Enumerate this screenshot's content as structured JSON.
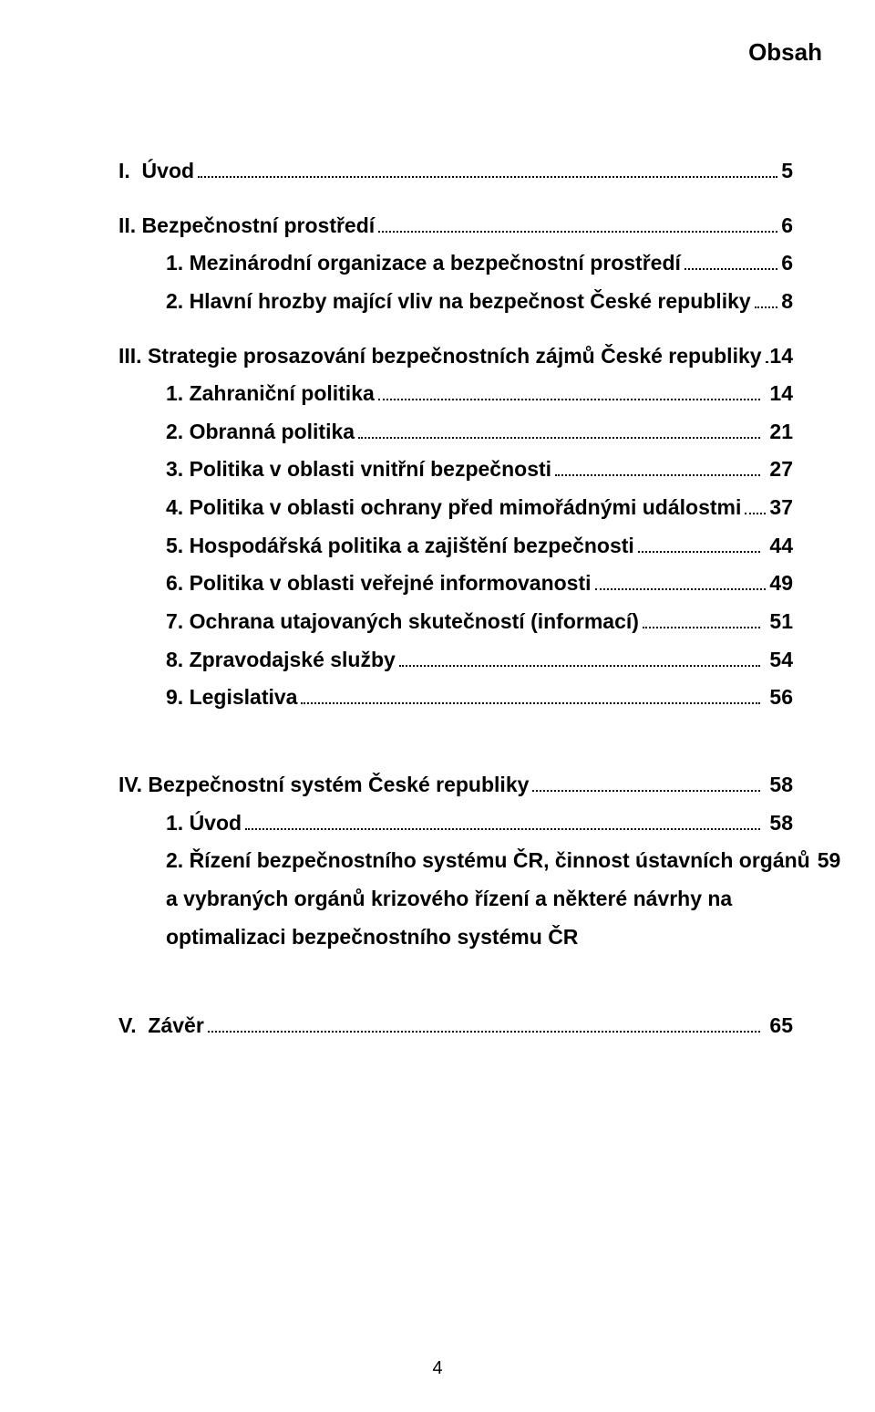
{
  "header": "Obsah",
  "toc": {
    "i": {
      "label": "I.  Úvod",
      "page": "5"
    },
    "ii": {
      "label": "II. Bezpečnostní prostředí",
      "page": "6"
    },
    "ii1": {
      "label": "1. Mezinárodní organizace a bezpečnostní prostředí",
      "page": "6"
    },
    "ii2": {
      "label": "2. Hlavní hrozby mající vliv na bezpečnost České republiky",
      "page": "8"
    },
    "iii": {
      "label": "III. Strategie prosazování bezpečnostních zájmů České republiky",
      "page": "14"
    },
    "iii1": {
      "label": "1. Zahraniční politika",
      "page": " 14"
    },
    "iii2": {
      "label": "2. Obranná politika",
      "page": " 21"
    },
    "iii3": {
      "label": "3. Politika v oblasti vnitřní bezpečnosti",
      "page": " 27"
    },
    "iii4": {
      "label": "4. Politika v oblasti ochrany před mimořádnými událostmi",
      "page": "37"
    },
    "iii5": {
      "label": "5. Hospodářská politika a zajištění bezpečnosti",
      "page": " 44"
    },
    "iii6": {
      "label": "6. Politika v oblasti veřejné informovanosti",
      "page": "49"
    },
    "iii7": {
      "label": "7. Ochrana utajovaných skutečností (informací)",
      "page": " 51"
    },
    "iii8": {
      "label": "8. Zpravodajské služby",
      "page": " 54"
    },
    "iii9": {
      "label": "9. Legislativa",
      "page": " 56"
    },
    "iv": {
      "label": "IV. Bezpečnostní systém České republiky",
      "page": " 58"
    },
    "iv1": {
      "label": "1. Úvod",
      "page": " 58"
    },
    "iv2": {
      "label": "2. Řízení bezpečnostního systému ČR, činnost ústavních orgánů",
      "page": "59"
    },
    "iv2b": {
      "line1": "a vybraných orgánů krizového řízení a některé návrhy na",
      "line2": "optimalizaci bezpečnostního systému ČR"
    },
    "v": {
      "label": "V.  Závěr",
      "page": " 65"
    }
  },
  "pageNumber": "4"
}
